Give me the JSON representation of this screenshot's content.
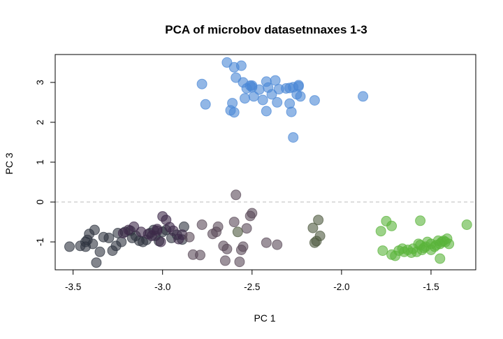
{
  "chart_data": {
    "type": "scatter",
    "title": "PCA of microbov datasetnnaxes 1-3",
    "xlabel": "PC 1",
    "ylabel": "PC 3",
    "xlim": [
      -3.6,
      -1.25
    ],
    "ylim": [
      -1.7,
      3.7
    ],
    "xticks": [
      "-3.5",
      "-3.0",
      "-2.5",
      "-2.0",
      "-1.5"
    ],
    "xtick_values": [
      -3.5,
      -3.0,
      -2.5,
      -2.0,
      -1.5
    ],
    "yticks": [
      "-1",
      "0",
      "1",
      "2",
      "3"
    ],
    "ytick_values": [
      -1,
      0,
      1,
      2,
      3
    ],
    "reference_line": {
      "y": 0,
      "style": "dashed",
      "color": "#bbbbbb"
    },
    "grid": false,
    "legend": "none",
    "groups": [
      {
        "color": "#4a87d6",
        "points": [
          [
            -2.64,
            3.5
          ],
          [
            -2.6,
            3.38
          ],
          [
            -2.56,
            3.42
          ],
          [
            -2.78,
            2.96
          ],
          [
            -2.59,
            3.12
          ],
          [
            -2.55,
            3.0
          ],
          [
            -2.51,
            2.92
          ],
          [
            -2.42,
            3.02
          ],
          [
            -2.37,
            3.05
          ],
          [
            -2.53,
            2.85
          ],
          [
            -2.5,
            2.88
          ],
          [
            -2.46,
            2.82
          ],
          [
            -2.41,
            2.87
          ],
          [
            -2.35,
            2.83
          ],
          [
            -2.31,
            2.85
          ],
          [
            -2.27,
            2.88
          ],
          [
            -2.24,
            2.93
          ],
          [
            -2.24,
            2.9
          ],
          [
            -2.25,
            2.7
          ],
          [
            -2.29,
            2.86
          ],
          [
            -2.39,
            2.7
          ],
          [
            -2.49,
            2.65
          ],
          [
            -2.54,
            2.6
          ],
          [
            -2.44,
            2.56
          ],
          [
            -2.36,
            2.5
          ],
          [
            -2.61,
            2.48
          ],
          [
            -2.29,
            2.47
          ],
          [
            -2.76,
            2.45
          ],
          [
            -2.62,
            2.3
          ],
          [
            -2.6,
            2.25
          ],
          [
            -2.42,
            2.28
          ],
          [
            -2.28,
            2.26
          ],
          [
            -2.15,
            2.55
          ],
          [
            -1.88,
            2.65
          ],
          [
            -2.27,
            1.62
          ],
          [
            -2.23,
            2.65
          ],
          [
            -2.5,
            2.92
          ]
        ]
      },
      {
        "color": "#2e3440",
        "points": [
          [
            -3.52,
            -1.12
          ],
          [
            -3.46,
            -1.1
          ],
          [
            -3.43,
            -1.12
          ],
          [
            -3.43,
            -1.0
          ],
          [
            -3.42,
            -0.95
          ],
          [
            -3.41,
            -0.8
          ],
          [
            -3.38,
            -0.7
          ],
          [
            -3.39,
            -1.05
          ],
          [
            -3.35,
            -1.25
          ],
          [
            -3.37,
            -1.52
          ],
          [
            -3.33,
            -0.88
          ],
          [
            -3.3,
            -0.9
          ],
          [
            -3.28,
            -1.22
          ],
          [
            -3.26,
            -1.1
          ],
          [
            -3.25,
            -0.78
          ],
          [
            -3.23,
            -1.0
          ],
          [
            -3.21,
            -0.75
          ],
          [
            -3.18,
            -0.72
          ],
          [
            -3.17,
            -0.9
          ],
          [
            -3.15,
            -0.85
          ],
          [
            -3.13,
            -0.97
          ],
          [
            -3.11,
            -1.0
          ],
          [
            -3.09,
            -0.95
          ],
          [
            -3.07,
            -0.78
          ],
          [
            -3.05,
            -0.7
          ],
          [
            -3.04,
            -0.85
          ],
          [
            -3.02,
            -0.98
          ],
          [
            -3.0,
            -0.75
          ],
          [
            -2.98,
            -0.7
          ],
          [
            -2.95,
            -0.9
          ],
          [
            -2.92,
            -0.82
          ],
          [
            -2.89,
            -0.94
          ],
          [
            -2.88,
            -0.62
          ]
        ]
      },
      {
        "color": "#3d2a4a",
        "points": [
          [
            -3.22,
            -0.78
          ],
          [
            -3.19,
            -0.7
          ],
          [
            -3.16,
            -0.62
          ],
          [
            -3.12,
            -0.75
          ],
          [
            -3.08,
            -0.8
          ],
          [
            -3.06,
            -0.85
          ],
          [
            -3.03,
            -0.68
          ],
          [
            -3.0,
            -0.36
          ],
          [
            -2.98,
            -0.45
          ],
          [
            -2.96,
            -0.63
          ],
          [
            -2.94,
            -0.72
          ],
          [
            -2.91,
            -0.93
          ],
          [
            -2.89,
            -0.82
          ],
          [
            -3.01,
            -1.0
          ],
          [
            -3.03,
            -0.72
          ]
        ]
      },
      {
        "color": "#5a4a58",
        "points": [
          [
            -2.85,
            -0.88
          ],
          [
            -2.78,
            -0.57
          ],
          [
            -2.72,
            -0.8
          ],
          [
            -2.69,
            -0.62
          ],
          [
            -2.7,
            -0.75
          ],
          [
            -2.66,
            -1.1
          ],
          [
            -2.64,
            -1.18
          ],
          [
            -2.65,
            -1.47
          ],
          [
            -2.83,
            -1.32
          ],
          [
            -2.79,
            -1.33
          ],
          [
            -2.55,
            -1.12
          ],
          [
            -2.56,
            -1.2
          ],
          [
            -2.57,
            -1.5
          ],
          [
            -2.53,
            -0.66
          ],
          [
            -2.51,
            -0.35
          ],
          [
            -2.5,
            -0.28
          ],
          [
            -2.6,
            -0.5
          ],
          [
            -2.42,
            -1.02
          ],
          [
            -2.36,
            -1.07
          ],
          [
            -2.59,
            0.18
          ]
        ]
      },
      {
        "color": "#4f5a40",
        "points": [
          [
            -2.58,
            -0.75
          ],
          [
            -2.16,
            -0.65
          ],
          [
            -2.13,
            -0.45
          ],
          [
            -2.12,
            -0.85
          ],
          [
            -2.15,
            -1.02
          ],
          [
            -2.14,
            -0.98
          ]
        ]
      },
      {
        "color": "#5ab43a",
        "points": [
          [
            -1.75,
            -0.48
          ],
          [
            -1.72,
            -0.6
          ],
          [
            -1.78,
            -0.73
          ],
          [
            -1.3,
            -0.57
          ],
          [
            -1.56,
            -0.47
          ],
          [
            -1.77,
            -1.22
          ],
          [
            -1.72,
            -1.32
          ],
          [
            -1.68,
            -1.22
          ],
          [
            -1.66,
            -1.17
          ],
          [
            -1.63,
            -1.2
          ],
          [
            -1.6,
            -1.17
          ],
          [
            -1.58,
            -1.25
          ],
          [
            -1.56,
            -1.08
          ],
          [
            -1.55,
            -1.2
          ],
          [
            -1.53,
            -1.12
          ],
          [
            -1.52,
            -1.0
          ],
          [
            -1.5,
            -1.05
          ],
          [
            -1.5,
            -1.2
          ],
          [
            -1.48,
            -1.12
          ],
          [
            -1.47,
            -1.08
          ],
          [
            -1.46,
            -0.97
          ],
          [
            -1.45,
            -1.05
          ],
          [
            -1.44,
            -1.0
          ],
          [
            -1.42,
            -1.0
          ],
          [
            -1.41,
            -0.92
          ],
          [
            -1.4,
            -1.05
          ],
          [
            -1.43,
            -0.97
          ],
          [
            -1.45,
            -1.42
          ],
          [
            -1.54,
            -1.15
          ],
          [
            -1.57,
            -1.05
          ],
          [
            -1.61,
            -1.27
          ],
          [
            -1.65,
            -1.25
          ],
          [
            -1.7,
            -1.35
          ]
        ]
      }
    ]
  }
}
